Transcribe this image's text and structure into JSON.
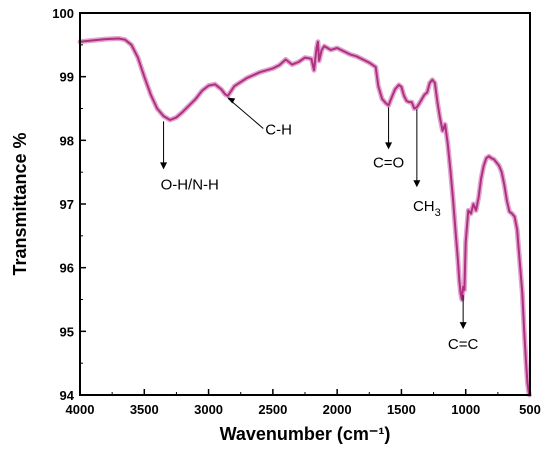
{
  "chart_data": {
    "type": "line",
    "title": "",
    "xlabel": "Wavenumber (cm⁻¹)",
    "ylabel": "Transmittance %",
    "xlim": [
      4000,
      500
    ],
    "ylim": [
      94,
      100
    ],
    "x_reversed": true,
    "grid": false,
    "legend": "none",
    "x_ticks": [
      4000,
      3500,
      3000,
      2500,
      2000,
      1500,
      1000,
      500
    ],
    "y_ticks": [
      94,
      95,
      96,
      97,
      98,
      99,
      100
    ],
    "line_color": "#b0307f",
    "band_color": "#e0a6cf",
    "series": [
      {
        "x": [
          4000,
          3900,
          3800,
          3700,
          3650,
          3600,
          3550,
          3500,
          3450,
          3400,
          3350,
          3300,
          3250,
          3200,
          3150,
          3100,
          3050,
          3000,
          2950,
          2900,
          2870,
          2850,
          2800,
          2700,
          2600,
          2500,
          2450,
          2400,
          2350,
          2300,
          2250,
          2200,
          2180,
          2160,
          2150,
          2140,
          2120,
          2100,
          2050,
          2000,
          1950,
          1900,
          1850,
          1800,
          1750,
          1700,
          1680,
          1650,
          1620,
          1600,
          1580,
          1550,
          1520,
          1500,
          1480,
          1460,
          1440,
          1420,
          1400,
          1380,
          1360,
          1340,
          1320,
          1300,
          1280,
          1260,
          1240,
          1220,
          1200,
          1180,
          1160,
          1140,
          1120,
          1100,
          1080,
          1060,
          1050,
          1040,
          1030,
          1020,
          1010,
          1000,
          980,
          960,
          940,
          920,
          900,
          880,
          860,
          840,
          820,
          800,
          780,
          760,
          740,
          720,
          700,
          680,
          660,
          640,
          620,
          600,
          580,
          560,
          545,
          530,
          520,
          510,
          505
        ],
        "y": [
          99.55,
          99.57,
          99.59,
          99.6,
          99.58,
          99.5,
          99.3,
          99.0,
          98.72,
          98.5,
          98.38,
          98.32,
          98.36,
          98.45,
          98.55,
          98.65,
          98.78,
          98.86,
          98.88,
          98.8,
          98.72,
          98.7,
          98.85,
          98.98,
          99.07,
          99.13,
          99.18,
          99.27,
          99.19,
          99.23,
          99.3,
          99.28,
          99.1,
          99.45,
          99.55,
          99.25,
          99.42,
          99.48,
          99.42,
          99.45,
          99.4,
          99.35,
          99.32,
          99.27,
          99.22,
          99.15,
          98.85,
          98.65,
          98.58,
          98.55,
          98.65,
          98.8,
          98.87,
          98.84,
          98.7,
          98.62,
          98.6,
          98.6,
          98.5,
          98.52,
          98.58,
          98.65,
          98.72,
          98.75,
          98.9,
          98.95,
          98.9,
          98.6,
          98.35,
          98.15,
          98.25,
          97.95,
          97.55,
          97.1,
          96.6,
          96.1,
          95.8,
          95.6,
          95.5,
          95.7,
          95.65,
          96.4,
          96.9,
          96.85,
          97.0,
          96.9,
          97.1,
          97.4,
          97.6,
          97.72,
          97.75,
          97.72,
          97.7,
          97.65,
          97.6,
          97.5,
          97.3,
          97.05,
          96.88,
          96.85,
          96.8,
          96.6,
          96.1,
          95.6,
          95.0,
          94.5,
          94.2,
          94.05,
          94.0
        ]
      }
    ],
    "annotations": [
      {
        "label": "O-H/N-H",
        "x": 3350,
        "y": 98.33
      },
      {
        "label": "C-H",
        "x": 2870,
        "y": 98.72
      },
      {
        "label": "C=O",
        "x": 1600,
        "y": 98.55
      },
      {
        "label": "CH",
        "sub": "3",
        "x": 1380,
        "y": 98.52
      },
      {
        "label": "C=C",
        "x": 1020,
        "y": 95.6
      }
    ]
  }
}
